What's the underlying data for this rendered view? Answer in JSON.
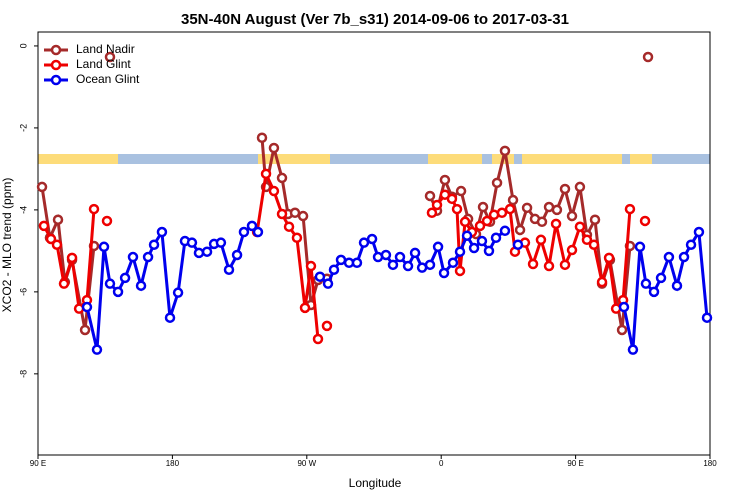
{
  "chart_data": {
    "type": "line",
    "title": "35N-40N August (Ver 7b_s31)   2014-09-06 to 2017-03-31",
    "x_label": "Longitude",
    "y_label": "XCO2 - MLO trend (ppm)",
    "xlim": [
      90,
      540
    ],
    "ylim": [
      -9.98,
      0.34
    ],
    "xticks": [
      {
        "value": 90,
        "label": "90 E"
      },
      {
        "value": 180,
        "label": "180"
      },
      {
        "value": 270,
        "label": "90 W"
      },
      {
        "value": 360,
        "label": "0"
      },
      {
        "value": 450,
        "label": "90 E"
      },
      {
        "value": 540,
        "label": "180"
      }
    ],
    "yticks": [
      0,
      -2,
      -4,
      -6,
      -8
    ],
    "legend": "top-left",
    "series": [
      {
        "name": "Land Nadir",
        "color": "#a52a2a",
        "x": [
          92.7,
          98,
          103.4,
          108,
          112.8,
          121.5,
          127.5,
          null,
          138.2,
          null,
          240.0,
          242.7,
          248.0,
          253.4,
          257.4,
          262.1,
          267.5,
          272.8,
          277.5,
          283.5,
          null,
          352.5,
          357.2,
          362.5,
          367.2,
          373.3,
          378.0,
          383.3,
          388.0,
          392.7,
          397.4,
          402.7,
          408.1,
          412.8,
          417.5,
          422.8,
          427.5,
          432.2,
          437.5,
          442.9,
          447.6,
          452.9,
          457.6,
          463.0,
          467.7,
          473.0,
          481.1,
          486.4,
          null,
          498.5
        ],
        "values": [
          -3.44,
          -4.68,
          -4.24,
          -5.76,
          -5.22,
          -6.93,
          -4.88,
          null,
          -0.27,
          null,
          -2.24,
          -3.44,
          -2.49,
          -3.22,
          -4.1,
          -4.07,
          -4.15,
          -6.32,
          -5.71,
          -5.68,
          null,
          -3.66,
          -4.02,
          -3.27,
          -3.68,
          -3.54,
          -4.22,
          -4.59,
          -3.93,
          -4.29,
          -3.34,
          -2.56,
          -3.76,
          -4.49,
          -3.95,
          -4.22,
          -4.29,
          -3.93,
          -4.0,
          -3.49,
          -4.15,
          -3.44,
          -4.61,
          -4.24,
          -5.8,
          -5.22,
          -6.93,
          -4.88,
          null,
          -0.27
        ]
      },
      {
        "name": "Land Glint",
        "color": "#ee0000",
        "x": [
          94,
          98.7,
          102.7,
          107.4,
          112.8,
          117.5,
          122.8,
          127.5,
          null,
          136.2,
          null,
          236.7,
          242.7,
          248.0,
          253.4,
          258.1,
          263.4,
          268.8,
          272.8,
          277.5,
          null,
          283.5,
          null,
          353.8,
          357.2,
          362.5,
          367.2,
          370.6,
          372.6,
          376.0,
          380.6,
          386.0,
          390.7,
          395.4,
          400.7,
          406.1,
          409.4,
          416.1,
          421.5,
          426.8,
          432.2,
          436.9,
          442.9,
          447.6,
          452.9,
          457.6,
          462.3,
          467.7,
          472.4,
          477.1,
          481.8,
          486.4,
          null,
          496.5
        ],
        "values": [
          -4.39,
          -4.71,
          -4.85,
          -5.8,
          -5.17,
          -6.41,
          -6.2,
          -3.98,
          null,
          -4.27,
          null,
          -4.54,
          -3.12,
          -3.54,
          -4.1,
          -4.41,
          -4.68,
          -6.39,
          -5.37,
          -7.15,
          null,
          -6.83,
          null,
          -4.07,
          -3.88,
          -3.63,
          -3.73,
          -3.98,
          -5.49,
          -4.29,
          -4.54,
          -4.39,
          -4.27,
          -4.12,
          -4.07,
          -3.98,
          -5.02,
          -4.8,
          -5.32,
          -4.73,
          -5.37,
          -4.34,
          -5.34,
          -4.98,
          -4.41,
          -4.73,
          -4.85,
          -5.76,
          -5.17,
          -6.41,
          -6.2,
          -3.98,
          null,
          -4.27
        ]
      },
      {
        "name": "Ocean Glint",
        "color": "#0000ee",
        "x": [
          122.8,
          129.5,
          134.2,
          138.2,
          143.6,
          148.3,
          153.6,
          159.0,
          163.7,
          167.7,
          173.0,
          178.4,
          183.8,
          188.4,
          193.1,
          197.8,
          203.2,
          207.9,
          212.5,
          217.9,
          223.3,
          227.9,
          233.3,
          237.3,
          null,
          278.8,
          284.2,
          288.2,
          292.9,
          298.3,
          303.6,
          308.3,
          313.7,
          317.7,
          323.0,
          327.7,
          332.4,
          337.8,
          342.5,
          347.2,
          352.5,
          357.9,
          361.9,
          367.9,
          372.6,
          377.3,
          382.0,
          387.3,
          392.0,
          396.7,
          402.7,
          null,
          411.4,
          null,
          482.4,
          488.4,
          493.1,
          497.1,
          502.5,
          507.2,
          512.5,
          517.9,
          522.6,
          527.3,
          532.6,
          538.0
        ],
        "values": [
          -6.37,
          -7.41,
          -4.9,
          -5.8,
          -6.0,
          -5.66,
          -5.15,
          -5.85,
          -5.15,
          -4.85,
          -4.54,
          -6.63,
          -6.02,
          -4.76,
          -4.8,
          -5.05,
          -5.02,
          -4.83,
          -4.8,
          -5.46,
          -5.1,
          -4.54,
          -4.39,
          -4.54,
          null,
          -5.63,
          -5.8,
          -5.46,
          -5.22,
          -5.29,
          -5.29,
          -4.8,
          -4.71,
          -5.15,
          -5.1,
          -5.34,
          -5.15,
          -5.37,
          -5.05,
          -5.41,
          -5.34,
          -4.9,
          -5.54,
          -5.29,
          -5.02,
          -4.63,
          -4.93,
          -4.76,
          -5.0,
          -4.68,
          -4.51,
          null,
          -4.85,
          null,
          -6.37,
          -7.41,
          -4.9,
          -5.8,
          -6.0,
          -5.66,
          -5.15,
          -5.85,
          -5.15,
          -4.85,
          -4.54,
          -6.63
        ]
      }
    ]
  }
}
